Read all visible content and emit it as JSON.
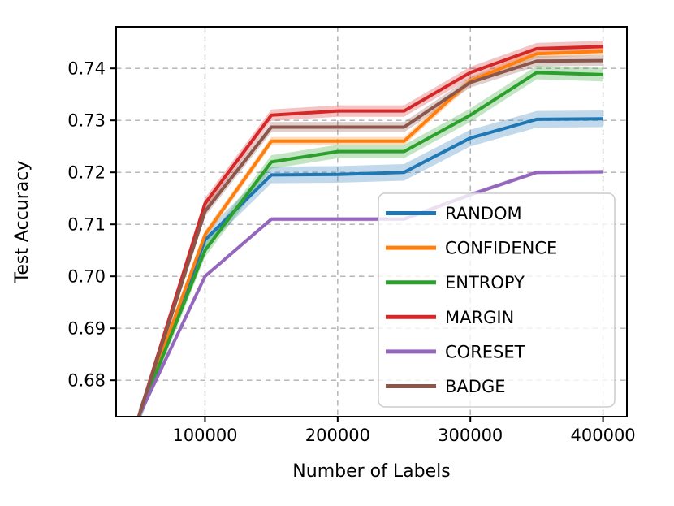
{
  "chart_data": {
    "type": "line",
    "title": "",
    "xlabel": "Number of Labels",
    "ylabel": "Test Accuracy",
    "grid": true,
    "legend_position": "lower-right-inside",
    "background": "#ffffff",
    "grid_color": "#b0b0b0",
    "xlim": [
      33000,
      418000
    ],
    "ylim": [
      0.673,
      0.748
    ],
    "xticks": [
      100000,
      200000,
      300000,
      400000
    ],
    "xtick_labels": [
      "100000",
      "200000",
      "300000",
      "400000"
    ],
    "yticks": [
      0.68,
      0.69,
      0.7,
      0.71,
      0.72,
      0.73,
      0.74
    ],
    "ytick_labels": [
      "0.68",
      "0.69",
      "0.70",
      "0.71",
      "0.72",
      "0.73",
      "0.74"
    ],
    "x": [
      50000,
      100000,
      150000,
      200000,
      250000,
      300000,
      350000,
      400000
    ],
    "series": [
      {
        "name": "RANDOM",
        "color": "#1f77b4",
        "band": 0.0016,
        "values": [
          0.673,
          0.707,
          0.7195,
          0.7196,
          0.72,
          0.7266,
          0.7302,
          0.7303
        ]
      },
      {
        "name": "CONFIDENCE",
        "color": "#ff7f0e",
        "band": 0.0008,
        "values": [
          0.673,
          0.708,
          0.726,
          0.726,
          0.726,
          0.7376,
          0.7428,
          0.7433
        ]
      },
      {
        "name": "ENTROPY",
        "color": "#2ca02c",
        "band": 0.0013,
        "values": [
          0.673,
          0.705,
          0.722,
          0.724,
          0.724,
          0.731,
          0.7392,
          0.7388
        ]
      },
      {
        "name": "MARGIN",
        "color": "#d62728",
        "band": 0.0011,
        "values": [
          0.673,
          0.714,
          0.731,
          0.7318,
          0.7318,
          0.7392,
          0.7438,
          0.7442
        ]
      },
      {
        "name": "CORESET",
        "color": "#9467bd",
        "band": 0.0004,
        "values": [
          0.673,
          0.7,
          0.711,
          0.711,
          0.711,
          0.7157,
          0.72,
          0.7201
        ]
      },
      {
        "name": "BADGE",
        "color": "#8c564b",
        "band": 0.001,
        "values": [
          0.673,
          0.7125,
          0.7287,
          0.7287,
          0.7287,
          0.7373,
          0.7414,
          0.7415
        ]
      }
    ]
  }
}
